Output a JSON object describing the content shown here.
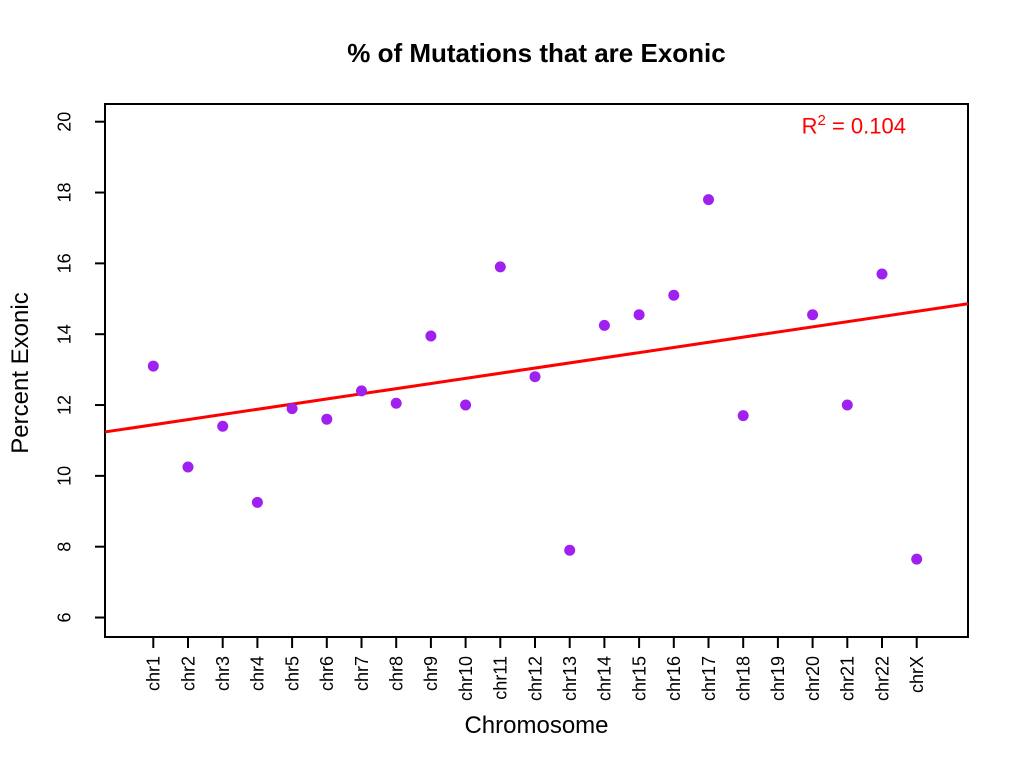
{
  "chart_data": {
    "type": "scatter",
    "title": "% of Mutations that are Exonic",
    "xlabel": "Chromosome",
    "ylabel": "Percent Exonic",
    "categories": [
      "chr1",
      "chr2",
      "chr3",
      "chr4",
      "chr5",
      "chr6",
      "chr7",
      "chr8",
      "chr9",
      "chr10",
      "chr11",
      "chr12",
      "chr13",
      "chr14",
      "chr15",
      "chr16",
      "chr17",
      "chr18",
      "chr19",
      "chr20",
      "chr21",
      "chr22",
      "chrX"
    ],
    "values": [
      13.1,
      10.25,
      11.4,
      9.25,
      11.9,
      11.6,
      12.4,
      12.05,
      13.95,
      12.0,
      15.9,
      12.8,
      7.9,
      14.25,
      14.55,
      15.1,
      17.8,
      11.7,
      null,
      14.55,
      12.0,
      15.7,
      7.65
    ],
    "yticks": [
      6,
      8,
      10,
      12,
      14,
      16,
      18,
      20
    ],
    "ylim": [
      5.45,
      20.5
    ],
    "grid": false,
    "legend": false,
    "background": "#ffffff",
    "text_color": "#000000",
    "point_color": "#a020f0",
    "trend_line": {
      "type": "linear",
      "color": "#ff0000",
      "value_at_left_edge": 11.24,
      "value_at_right_edge": 14.86
    },
    "annotation": {
      "text": "R² = 0.104",
      "base": "R",
      "sup": "2",
      "rest": " = 0.104",
      "color": "#ff0000"
    }
  }
}
